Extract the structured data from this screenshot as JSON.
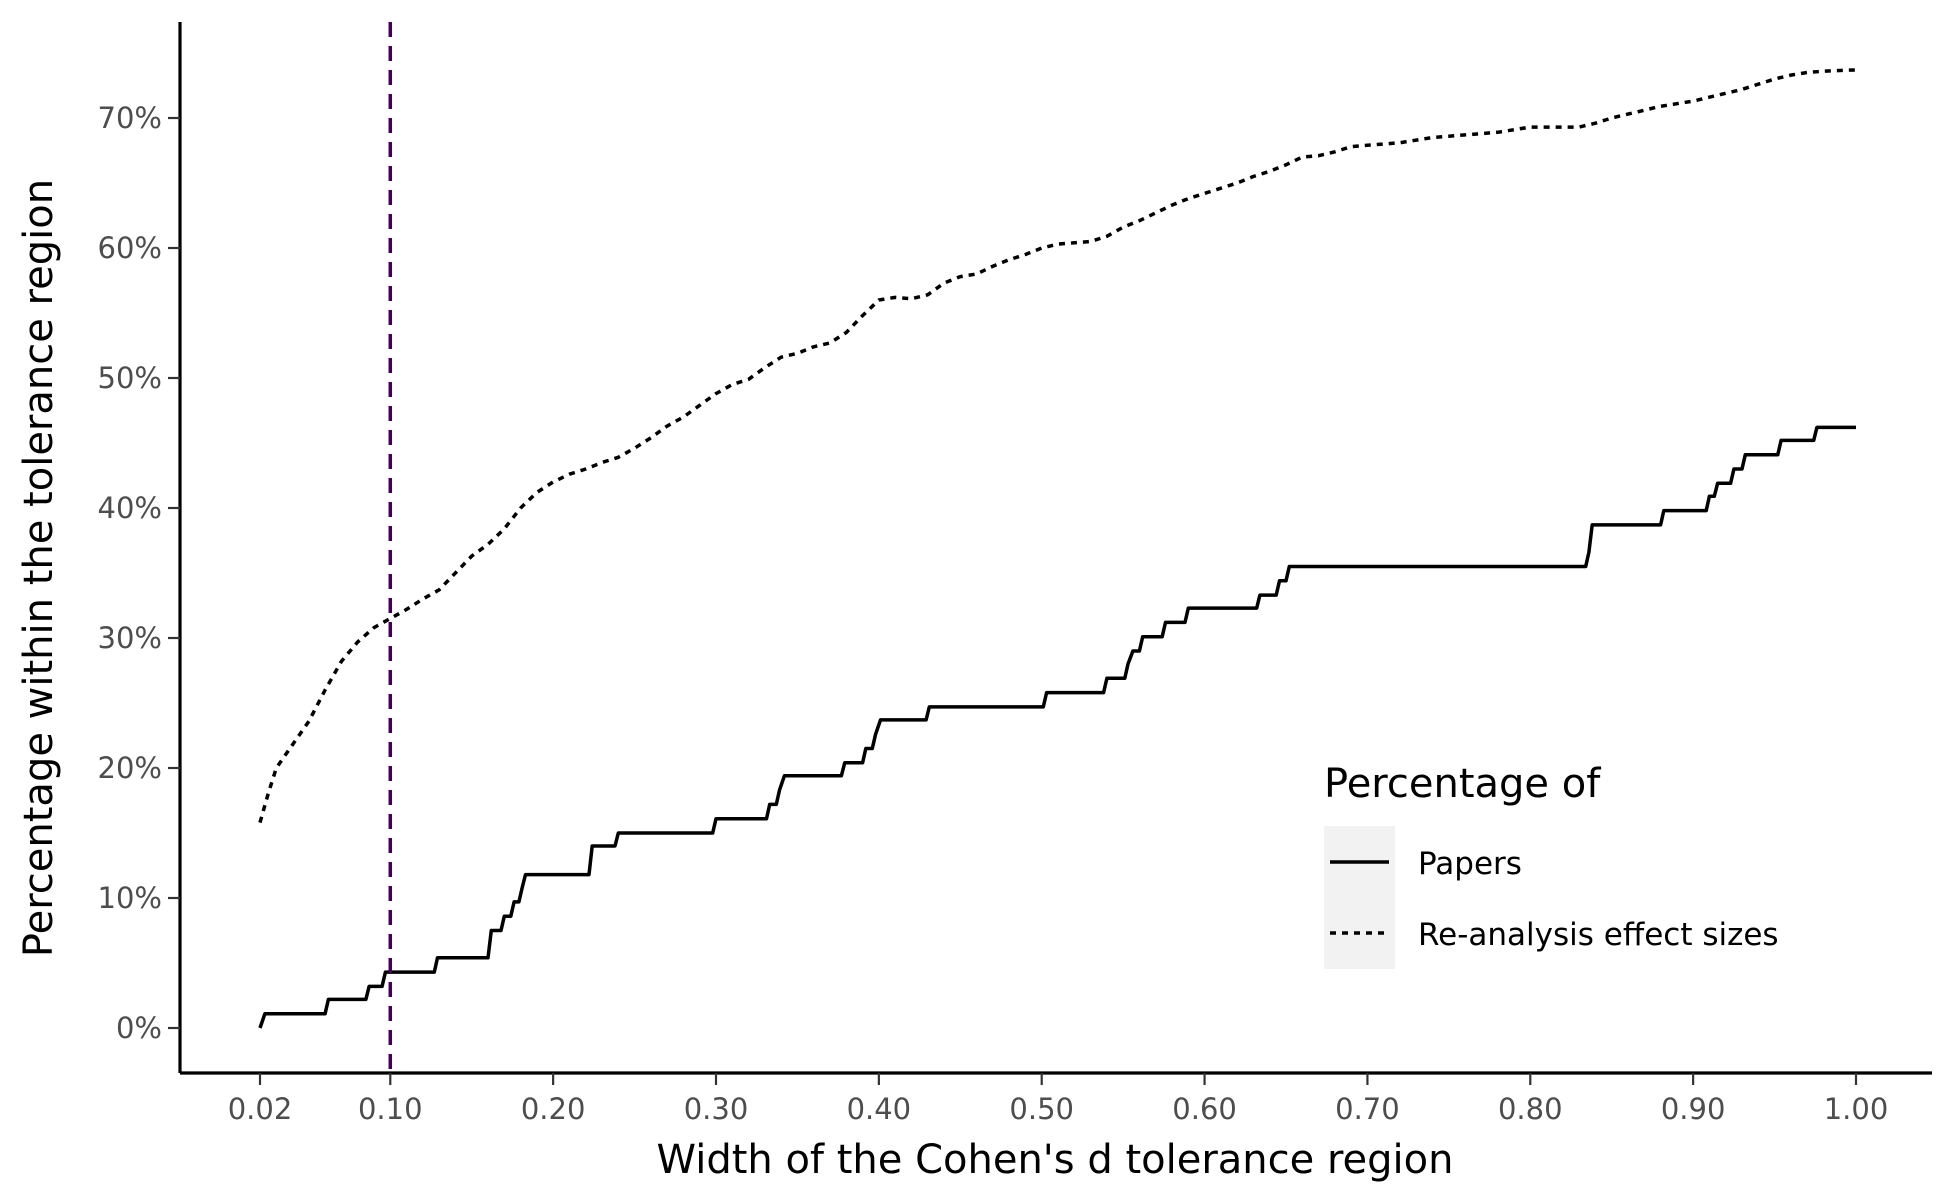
{
  "chart_data": {
    "type": "line",
    "title": "",
    "xlabel": "Width of the Cohen's d tolerance region",
    "ylabel": "Percentage within the tolerance region",
    "xlim": [
      0.02,
      1.0
    ],
    "ylim": [
      0,
      73.7
    ],
    "x_ticks": [
      0.02,
      0.1,
      0.2,
      0.3,
      0.4,
      0.5,
      0.6,
      0.7,
      0.8,
      0.9,
      1.0
    ],
    "x_tick_labels": [
      "0.02",
      "0.10",
      "0.20",
      "0.30",
      "0.40",
      "0.50",
      "0.60",
      "0.70",
      "0.80",
      "0.90",
      "1.00"
    ],
    "y_ticks": [
      0,
      10,
      20,
      30,
      40,
      50,
      60,
      70
    ],
    "y_tick_labels": [
      "0%",
      "10%",
      "20%",
      "30%",
      "40%",
      "50%",
      "60%",
      "70%"
    ],
    "grid": false,
    "reference_line": {
      "x": 0.1,
      "color": "#440154"
    },
    "legend": {
      "title": "Percentage of",
      "position": "right"
    },
    "series": [
      {
        "name": "Papers",
        "line_style": "solid",
        "color": "#000000",
        "points": [
          [
            0.02,
            0.0
          ],
          [
            0.023,
            1.1
          ],
          [
            0.06,
            1.1
          ],
          [
            0.062,
            2.2
          ],
          [
            0.085,
            2.2
          ],
          [
            0.087,
            3.2
          ],
          [
            0.095,
            3.2
          ],
          [
            0.097,
            4.3
          ],
          [
            0.127,
            4.3
          ],
          [
            0.129,
            5.4
          ],
          [
            0.16,
            5.4
          ],
          [
            0.162,
            7.5
          ],
          [
            0.168,
            7.5
          ],
          [
            0.17,
            8.6
          ],
          [
            0.174,
            8.6
          ],
          [
            0.176,
            9.7
          ],
          [
            0.179,
            9.7
          ],
          [
            0.181,
            10.8
          ],
          [
            0.183,
            11.8
          ],
          [
            0.222,
            11.8
          ],
          [
            0.224,
            14.0
          ],
          [
            0.238,
            14.0
          ],
          [
            0.24,
            15.0
          ],
          [
            0.298,
            15.0
          ],
          [
            0.3,
            16.1
          ],
          [
            0.331,
            16.1
          ],
          [
            0.333,
            17.2
          ],
          [
            0.337,
            17.2
          ],
          [
            0.339,
            18.3
          ],
          [
            0.342,
            19.4
          ],
          [
            0.377,
            19.4
          ],
          [
            0.379,
            20.4
          ],
          [
            0.39,
            20.4
          ],
          [
            0.392,
            21.5
          ],
          [
            0.396,
            21.5
          ],
          [
            0.398,
            22.6
          ],
          [
            0.401,
            23.7
          ],
          [
            0.429,
            23.7
          ],
          [
            0.431,
            24.7
          ],
          [
            0.501,
            24.7
          ],
          [
            0.503,
            25.8
          ],
          [
            0.538,
            25.8
          ],
          [
            0.54,
            26.9
          ],
          [
            0.551,
            26.9
          ],
          [
            0.553,
            28.0
          ],
          [
            0.556,
            29.0
          ],
          [
            0.56,
            29.0
          ],
          [
            0.562,
            30.1
          ],
          [
            0.574,
            30.1
          ],
          [
            0.576,
            31.2
          ],
          [
            0.588,
            31.2
          ],
          [
            0.59,
            32.3
          ],
          [
            0.632,
            32.3
          ],
          [
            0.634,
            33.3
          ],
          [
            0.644,
            33.3
          ],
          [
            0.646,
            34.4
          ],
          [
            0.65,
            34.4
          ],
          [
            0.652,
            35.5
          ],
          [
            0.834,
            35.5
          ],
          [
            0.836,
            36.6
          ],
          [
            0.838,
            38.7
          ],
          [
            0.88,
            38.7
          ],
          [
            0.882,
            39.8
          ],
          [
            0.908,
            39.8
          ],
          [
            0.91,
            40.9
          ],
          [
            0.913,
            40.9
          ],
          [
            0.915,
            41.9
          ],
          [
            0.923,
            41.9
          ],
          [
            0.925,
            43.0
          ],
          [
            0.93,
            43.0
          ],
          [
            0.932,
            44.1
          ],
          [
            0.952,
            44.1
          ],
          [
            0.954,
            45.2
          ],
          [
            0.974,
            45.2
          ],
          [
            0.976,
            46.2
          ],
          [
            1.0,
            46.2
          ]
        ]
      },
      {
        "name": "Re-analysis effect sizes",
        "line_style": "dotted",
        "color": "#000000",
        "points": [
          [
            0.02,
            15.8
          ],
          [
            0.025,
            18.0
          ],
          [
            0.03,
            20.0
          ],
          [
            0.04,
            21.8
          ],
          [
            0.05,
            23.6
          ],
          [
            0.06,
            26.0
          ],
          [
            0.07,
            28.2
          ],
          [
            0.08,
            29.7
          ],
          [
            0.09,
            30.8
          ],
          [
            0.1,
            31.5
          ],
          [
            0.11,
            32.2
          ],
          [
            0.12,
            33.0
          ],
          [
            0.13,
            33.7
          ],
          [
            0.14,
            35.0
          ],
          [
            0.15,
            36.3
          ],
          [
            0.16,
            37.2
          ],
          [
            0.17,
            38.4
          ],
          [
            0.18,
            40.0
          ],
          [
            0.19,
            41.2
          ],
          [
            0.2,
            42.0
          ],
          [
            0.21,
            42.6
          ],
          [
            0.22,
            43.0
          ],
          [
            0.23,
            43.5
          ],
          [
            0.24,
            43.9
          ],
          [
            0.25,
            44.6
          ],
          [
            0.26,
            45.4
          ],
          [
            0.27,
            46.3
          ],
          [
            0.28,
            47.0
          ],
          [
            0.29,
            47.9
          ],
          [
            0.3,
            48.8
          ],
          [
            0.31,
            49.5
          ],
          [
            0.32,
            49.9
          ],
          [
            0.33,
            50.8
          ],
          [
            0.34,
            51.6
          ],
          [
            0.35,
            51.9
          ],
          [
            0.36,
            52.4
          ],
          [
            0.37,
            52.7
          ],
          [
            0.38,
            53.5
          ],
          [
            0.39,
            54.8
          ],
          [
            0.4,
            56.0
          ],
          [
            0.41,
            56.2
          ],
          [
            0.42,
            56.1
          ],
          [
            0.43,
            56.4
          ],
          [
            0.44,
            57.3
          ],
          [
            0.45,
            57.8
          ],
          [
            0.46,
            58.0
          ],
          [
            0.47,
            58.6
          ],
          [
            0.48,
            59.1
          ],
          [
            0.49,
            59.5
          ],
          [
            0.5,
            60.0
          ],
          [
            0.51,
            60.3
          ],
          [
            0.52,
            60.4
          ],
          [
            0.53,
            60.5
          ],
          [
            0.54,
            60.9
          ],
          [
            0.55,
            61.6
          ],
          [
            0.56,
            62.1
          ],
          [
            0.57,
            62.7
          ],
          [
            0.58,
            63.3
          ],
          [
            0.59,
            63.8
          ],
          [
            0.6,
            64.2
          ],
          [
            0.61,
            64.6
          ],
          [
            0.62,
            65.0
          ],
          [
            0.63,
            65.5
          ],
          [
            0.64,
            65.9
          ],
          [
            0.65,
            66.4
          ],
          [
            0.66,
            67.0
          ],
          [
            0.67,
            67.1
          ],
          [
            0.68,
            67.4
          ],
          [
            0.69,
            67.8
          ],
          [
            0.7,
            67.9
          ],
          [
            0.71,
            68.0
          ],
          [
            0.72,
            68.1
          ],
          [
            0.73,
            68.3
          ],
          [
            0.74,
            68.5
          ],
          [
            0.75,
            68.6
          ],
          [
            0.76,
            68.7
          ],
          [
            0.77,
            68.8
          ],
          [
            0.78,
            68.9
          ],
          [
            0.79,
            69.1
          ],
          [
            0.8,
            69.3
          ],
          [
            0.81,
            69.3
          ],
          [
            0.82,
            69.3
          ],
          [
            0.83,
            69.3
          ],
          [
            0.84,
            69.6
          ],
          [
            0.85,
            70.0
          ],
          [
            0.86,
            70.3
          ],
          [
            0.87,
            70.6
          ],
          [
            0.88,
            70.9
          ],
          [
            0.89,
            71.1
          ],
          [
            0.9,
            71.3
          ],
          [
            0.91,
            71.6
          ],
          [
            0.92,
            71.9
          ],
          [
            0.93,
            72.2
          ],
          [
            0.94,
            72.6
          ],
          [
            0.95,
            73.0
          ],
          [
            0.96,
            73.3
          ],
          [
            0.97,
            73.5
          ],
          [
            0.98,
            73.6
          ],
          [
            1.0,
            73.7
          ]
        ]
      }
    ]
  }
}
